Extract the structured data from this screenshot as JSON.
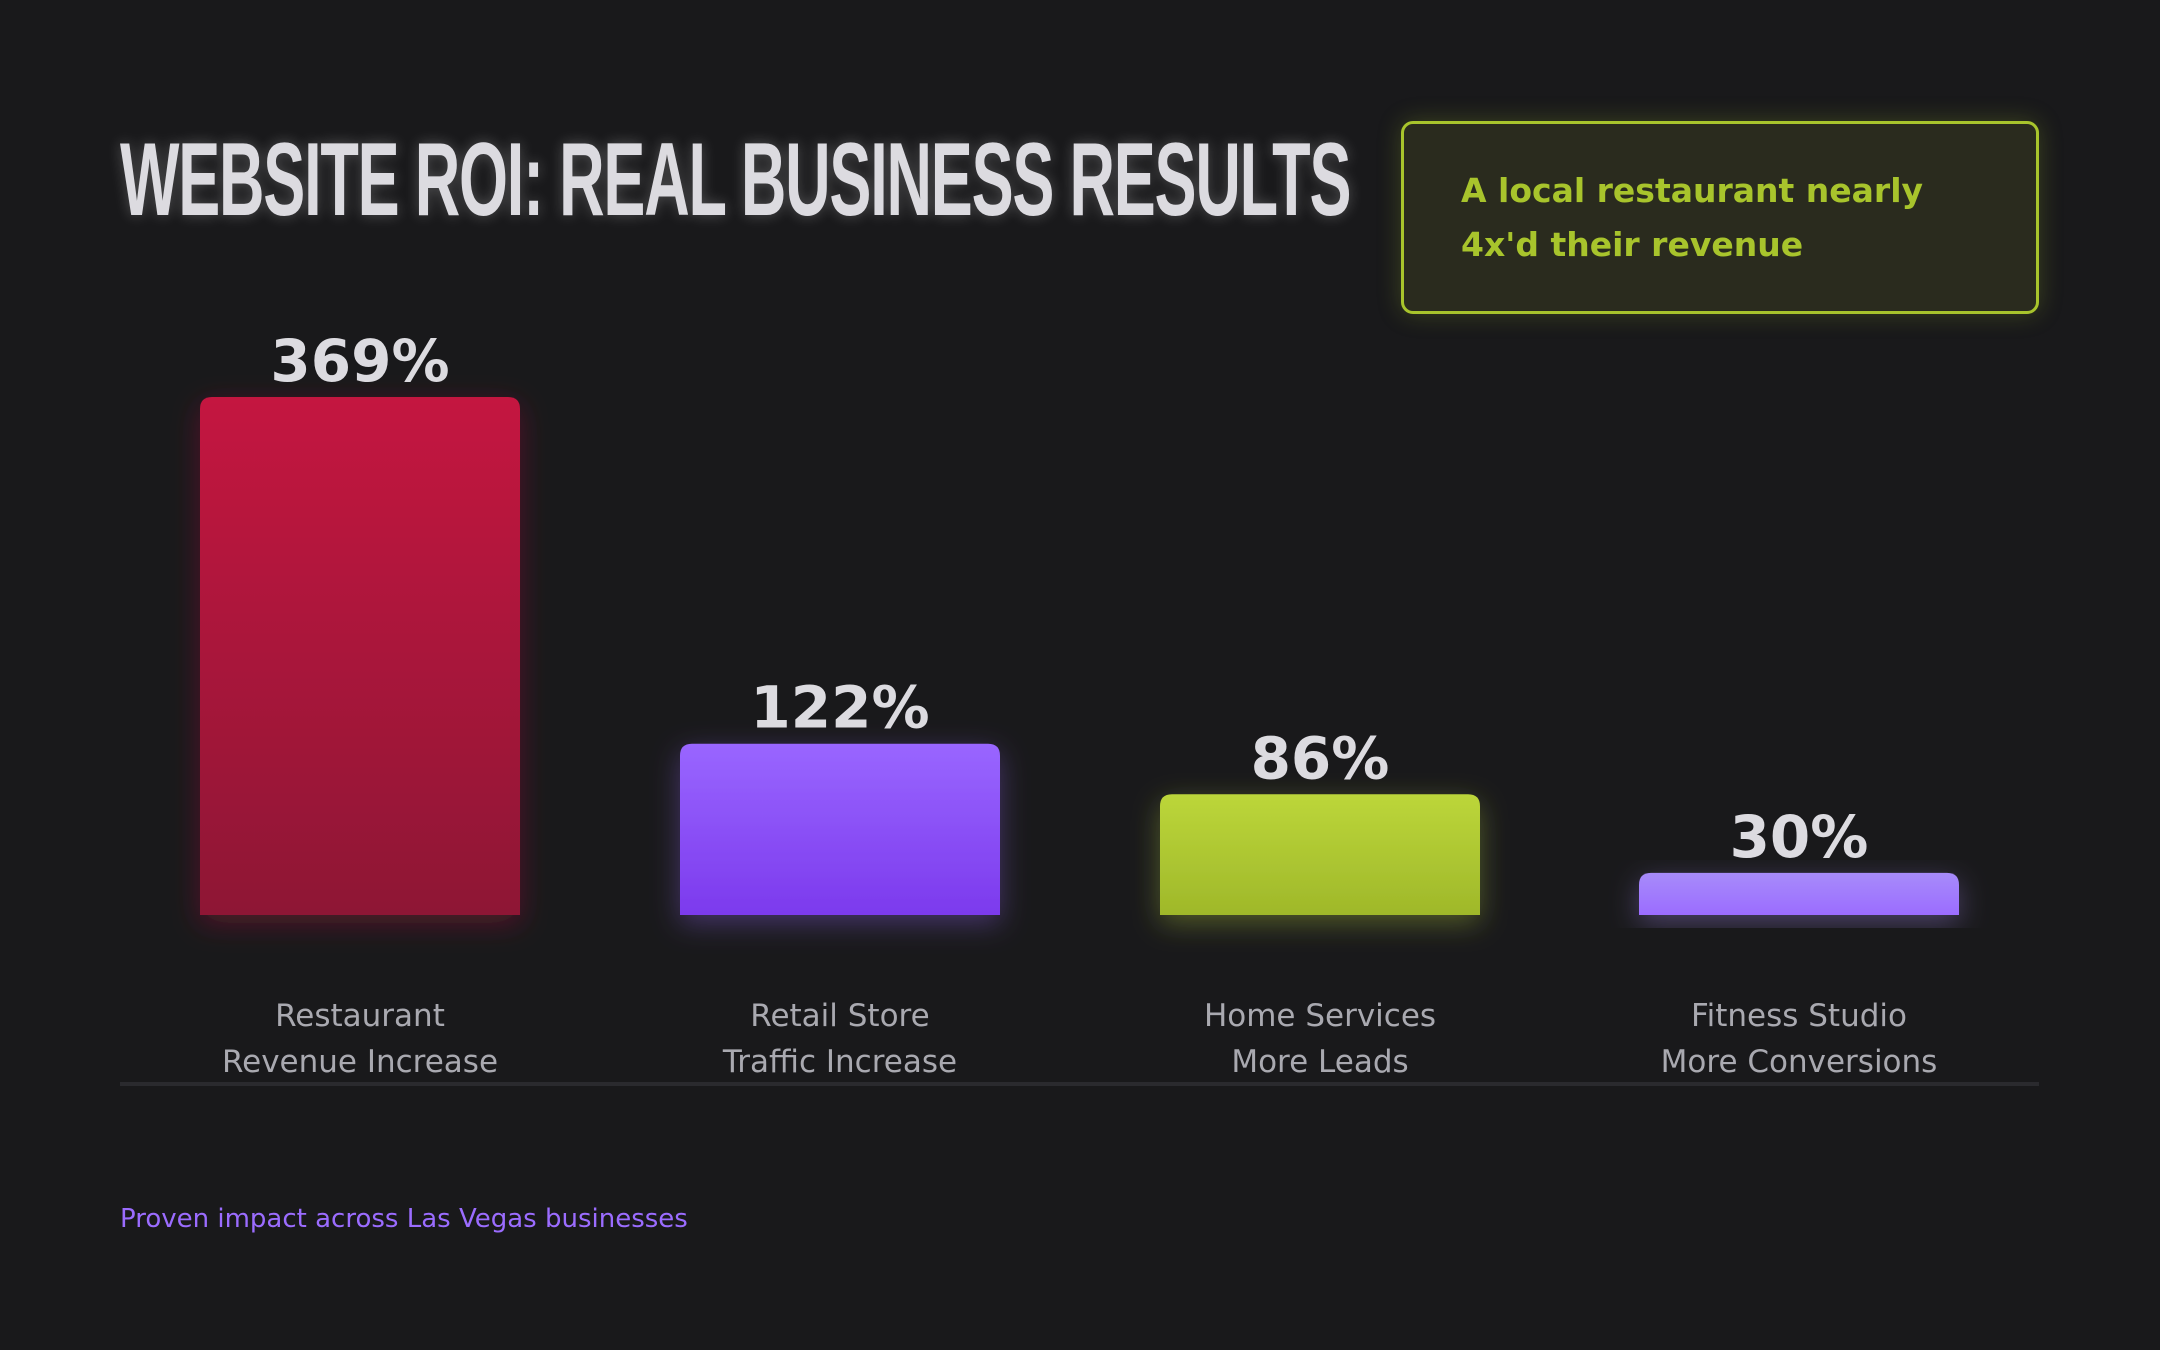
{
  "title": "WEBSITE ROI: REAL BUSINESS RESULTS",
  "callout": "A local restaurant nearly 4x'd their revenue",
  "footer": "Proven impact across Las Vegas businesses",
  "chart_data": {
    "type": "bar",
    "categories": [
      [
        "Restaurant",
        "Revenue Increase"
      ],
      [
        "Retail Store",
        "Traffic Increase"
      ],
      [
        "Home Services",
        "More Leads"
      ],
      [
        "Fitness Studio",
        "More Conversions"
      ]
    ],
    "values": [
      369,
      122,
      86,
      30
    ],
    "value_labels": [
      "369%",
      "122%",
      "86%",
      "30%"
    ],
    "unit": "%",
    "ylim": [
      0,
      369
    ],
    "grid": false,
    "colors": [
      [
        "#c41540",
        "#8e1535"
      ],
      [
        "#9966ff",
        "#7c3aed"
      ],
      [
        "#bcd63a",
        "#9fb82a"
      ],
      [
        "#a78bfa",
        "#9b6cff"
      ]
    ]
  }
}
